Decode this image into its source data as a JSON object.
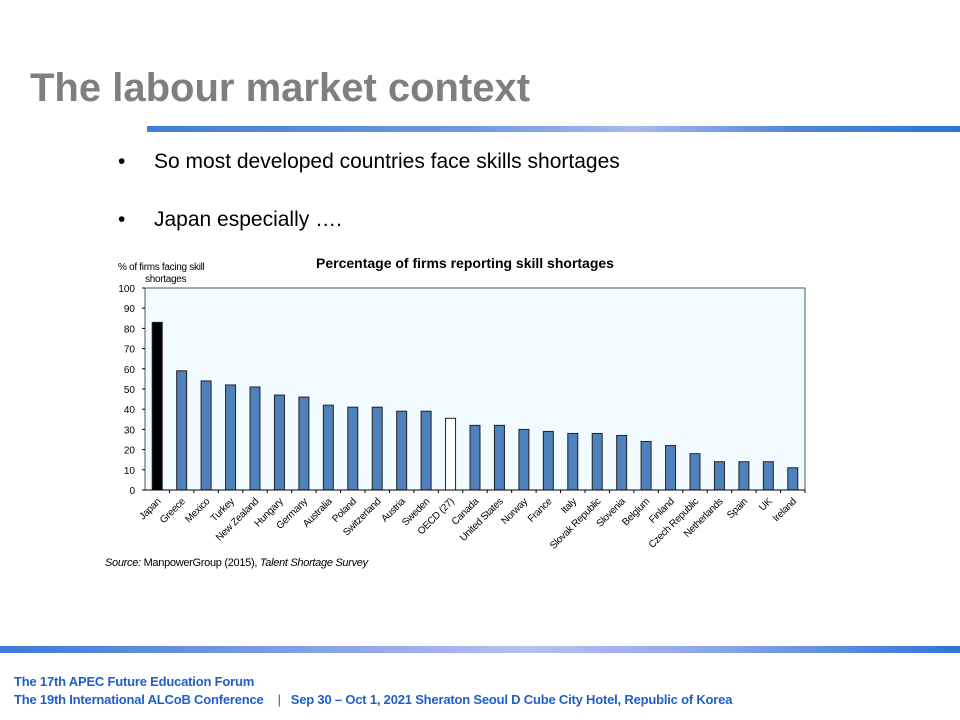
{
  "slide": {
    "title": "The labour market context",
    "bullets": [
      "So most developed countries face skills shortages",
      "Japan especially …."
    ],
    "bullet_symbol": "•",
    "source_prefix": "Source:",
    "source_text": " ManpowerGroup (2015), ",
    "source_italic": "Talent Shortage Survey"
  },
  "footer": {
    "line1": "The 17th APEC Future Education Forum",
    "line2": "The 19th International ALCoB Conference",
    "separator": "|",
    "details": "Sep 30 – Oct 1, 2021 Sheraton Seoul D Cube City Hotel, Republic of Korea",
    "color": "#1f5fc8"
  },
  "chart_data": {
    "type": "bar",
    "title": "Percentage of firms reporting skill shortages",
    "ylabel": "% of firms facing skill shortages",
    "ylabel_lines": [
      "% of  firms facing skill",
      "shortages"
    ],
    "xlabel": "",
    "ylim": [
      0,
      100
    ],
    "yticks": [
      0,
      10,
      20,
      30,
      40,
      50,
      60,
      70,
      80,
      90,
      100
    ],
    "categories": [
      "Japan",
      "Greece",
      "Mexico",
      "Turkey",
      "New Zealand",
      "Hungary",
      "Germany",
      "Australia",
      "Poland",
      "Switzerland",
      "Austria",
      "Sweden",
      "OECD (27)",
      "Canada",
      "United States",
      "Norway",
      "France",
      "Italy",
      "Slovak Republic",
      "Slovenia",
      "Belgium",
      "Finland",
      "Czech Republic",
      "Netherlands",
      "Spain",
      "UK",
      "Ireland"
    ],
    "values": [
      83,
      59,
      54,
      52,
      51,
      47,
      46,
      42,
      41,
      41,
      39,
      39,
      35.5,
      32,
      32,
      30,
      29,
      28,
      28,
      27,
      24,
      22,
      18,
      14,
      14,
      14,
      11
    ],
    "highlight": {
      "Japan": "#000000",
      "OECD (27)": "#ffffff"
    },
    "bar_color": "#4f81bd",
    "plot_background": "#f2fbff"
  }
}
